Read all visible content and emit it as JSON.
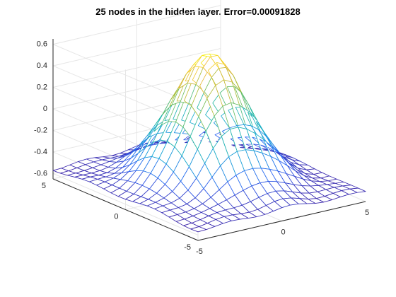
{
  "chart_data": {
    "type": "surface-mesh",
    "title": "25 nodes in the hidden layer. Error=0.00091828",
    "xlabel": "",
    "ylabel": "",
    "zlabel": "",
    "xlim": [
      -5,
      5
    ],
    "ylim": [
      -5,
      5
    ],
    "zlim": [
      -0.65,
      0.65
    ],
    "x_ticks": [
      -5,
      0,
      5
    ],
    "y_ticks": [
      -5,
      0,
      5
    ],
    "z_ticks": [
      -0.6,
      -0.4,
      -0.2,
      0,
      0.2,
      0.4,
      0.6
    ],
    "z_tick_labels": [
      "-0.6",
      "-0.4",
      "-0.2",
      "0",
      "0.2",
      "0.4",
      "0.6"
    ],
    "x_tick_labels": [
      "-5",
      "0",
      "5"
    ],
    "y_tick_labels": [
      "-5",
      "0",
      "5"
    ],
    "grid": true,
    "colormap": "parula",
    "colormap_stops": [
      "#3e26a8",
      "#2f66f4",
      "#14a9d4",
      "#2ebc9f",
      "#9abf3b",
      "#f0b93a",
      "#f9fb15"
    ],
    "mesh_resolution": 21,
    "surface": {
      "shape": "gaussian-like bump centered at origin",
      "peak_value": 0.6,
      "floor_value": -0.56,
      "width": 1.8
    }
  }
}
